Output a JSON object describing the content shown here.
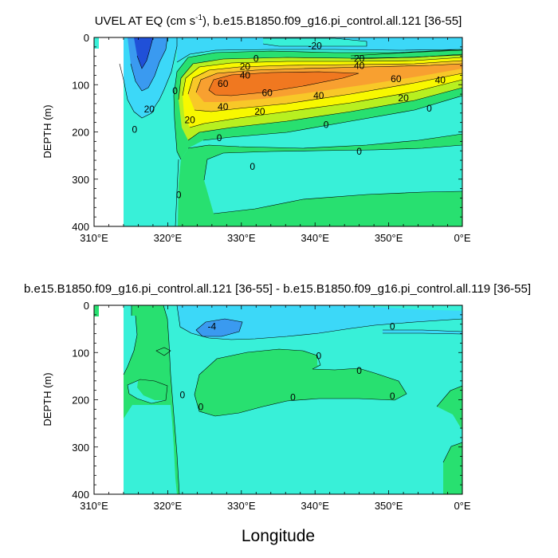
{
  "chart_data": [
    {
      "type": "contour",
      "title": "UVEL AT EQ (cm s",
      "title_sup": "-1",
      "title_rest": "), b.e15.B1850.f09_g16.pi_control.all.121 [36-55]",
      "ylabel": "DEPTH (m)",
      "xlabel": "",
      "xlim": [
        310,
        360
      ],
      "ylim": [
        400,
        0
      ],
      "x_ticks": [
        "310°E",
        "320°E",
        "330°E",
        "340°E",
        "350°E",
        "0°E"
      ],
      "y_ticks": [
        "0",
        "100",
        "200",
        "300",
        "400"
      ],
      "contour_labels": [
        {
          "text": "-20",
          "x": 340.0,
          "y": 18
        },
        {
          "text": "0",
          "x": 332.0,
          "y": 45
        },
        {
          "text": "20",
          "x": 346.0,
          "y": 45
        },
        {
          "text": "20",
          "x": 330.5,
          "y": 62
        },
        {
          "text": "40",
          "x": 346.0,
          "y": 60
        },
        {
          "text": "40",
          "x": 330.5,
          "y": 80
        },
        {
          "text": "60",
          "x": 327.5,
          "y": 98
        },
        {
          "text": "60",
          "x": 351.0,
          "y": 88
        },
        {
          "text": "40",
          "x": 357.0,
          "y": 90
        },
        {
          "text": "0",
          "x": 321.0,
          "y": 113
        },
        {
          "text": "60",
          "x": 333.5,
          "y": 117
        },
        {
          "text": "40",
          "x": 340.5,
          "y": 123
        },
        {
          "text": "20",
          "x": 352.0,
          "y": 128
        },
        {
          "text": "40",
          "x": 327.5,
          "y": 147
        },
        {
          "text": "20",
          "x": 317.5,
          "y": 152
        },
        {
          "text": "0",
          "x": 355.5,
          "y": 150
        },
        {
          "text": "20",
          "x": 332.5,
          "y": 157
        },
        {
          "text": "20",
          "x": 323.0,
          "y": 175
        },
        {
          "text": "0",
          "x": 315.5,
          "y": 195
        },
        {
          "text": "0",
          "x": 341.5,
          "y": 185
        },
        {
          "text": "0",
          "x": 327.0,
          "y": 213
        },
        {
          "text": "0",
          "x": 346.0,
          "y": 241
        },
        {
          "text": "0",
          "x": 331.5,
          "y": 273
        },
        {
          "text": "0",
          "x": 321.5,
          "y": 333
        }
      ]
    },
    {
      "type": "contour",
      "title": "b.e15.B1850.f09_g16.pi_control.all.121 [36-55] - b.e15.B1850.f09_g16.pi_control.all.119 [36-55]",
      "ylabel": "DEPTH (m)",
      "xlabel": "Longitude",
      "xlim": [
        310,
        360
      ],
      "ylim": [
        400,
        0
      ],
      "x_ticks": [
        "310°E",
        "320°E",
        "330°E",
        "340°E",
        "350°E",
        "0°E"
      ],
      "y_ticks": [
        "0",
        "100",
        "200",
        "300",
        "400"
      ],
      "contour_labels": [
        {
          "text": "-4",
          "x": 326.0,
          "y": 45
        },
        {
          "text": "0",
          "x": 350.5,
          "y": 45
        },
        {
          "text": "0",
          "x": 340.5,
          "y": 107
        },
        {
          "text": "0",
          "x": 346.0,
          "y": 138
        },
        {
          "text": "0",
          "x": 322.0,
          "y": 190
        },
        {
          "text": "0",
          "x": 337.0,
          "y": 195
        },
        {
          "text": "0",
          "x": 350.5,
          "y": 192
        },
        {
          "text": "0",
          "x": 324.5,
          "y": 215
        }
      ]
    }
  ],
  "colors": {
    "dark_blue": "#2050d8",
    "mid_blue": "#3a9af0",
    "light_blue": "#3cd8f8",
    "cyan": "#38f0d8",
    "aquamarine": "#40f8b0",
    "green": "#28e070",
    "yellow_green": "#b8f020",
    "yellow": "#f8f800",
    "light_orange": "#f8c828",
    "orange": "#f8a030",
    "dark_orange": "#f07820",
    "land": "#ffffff"
  }
}
